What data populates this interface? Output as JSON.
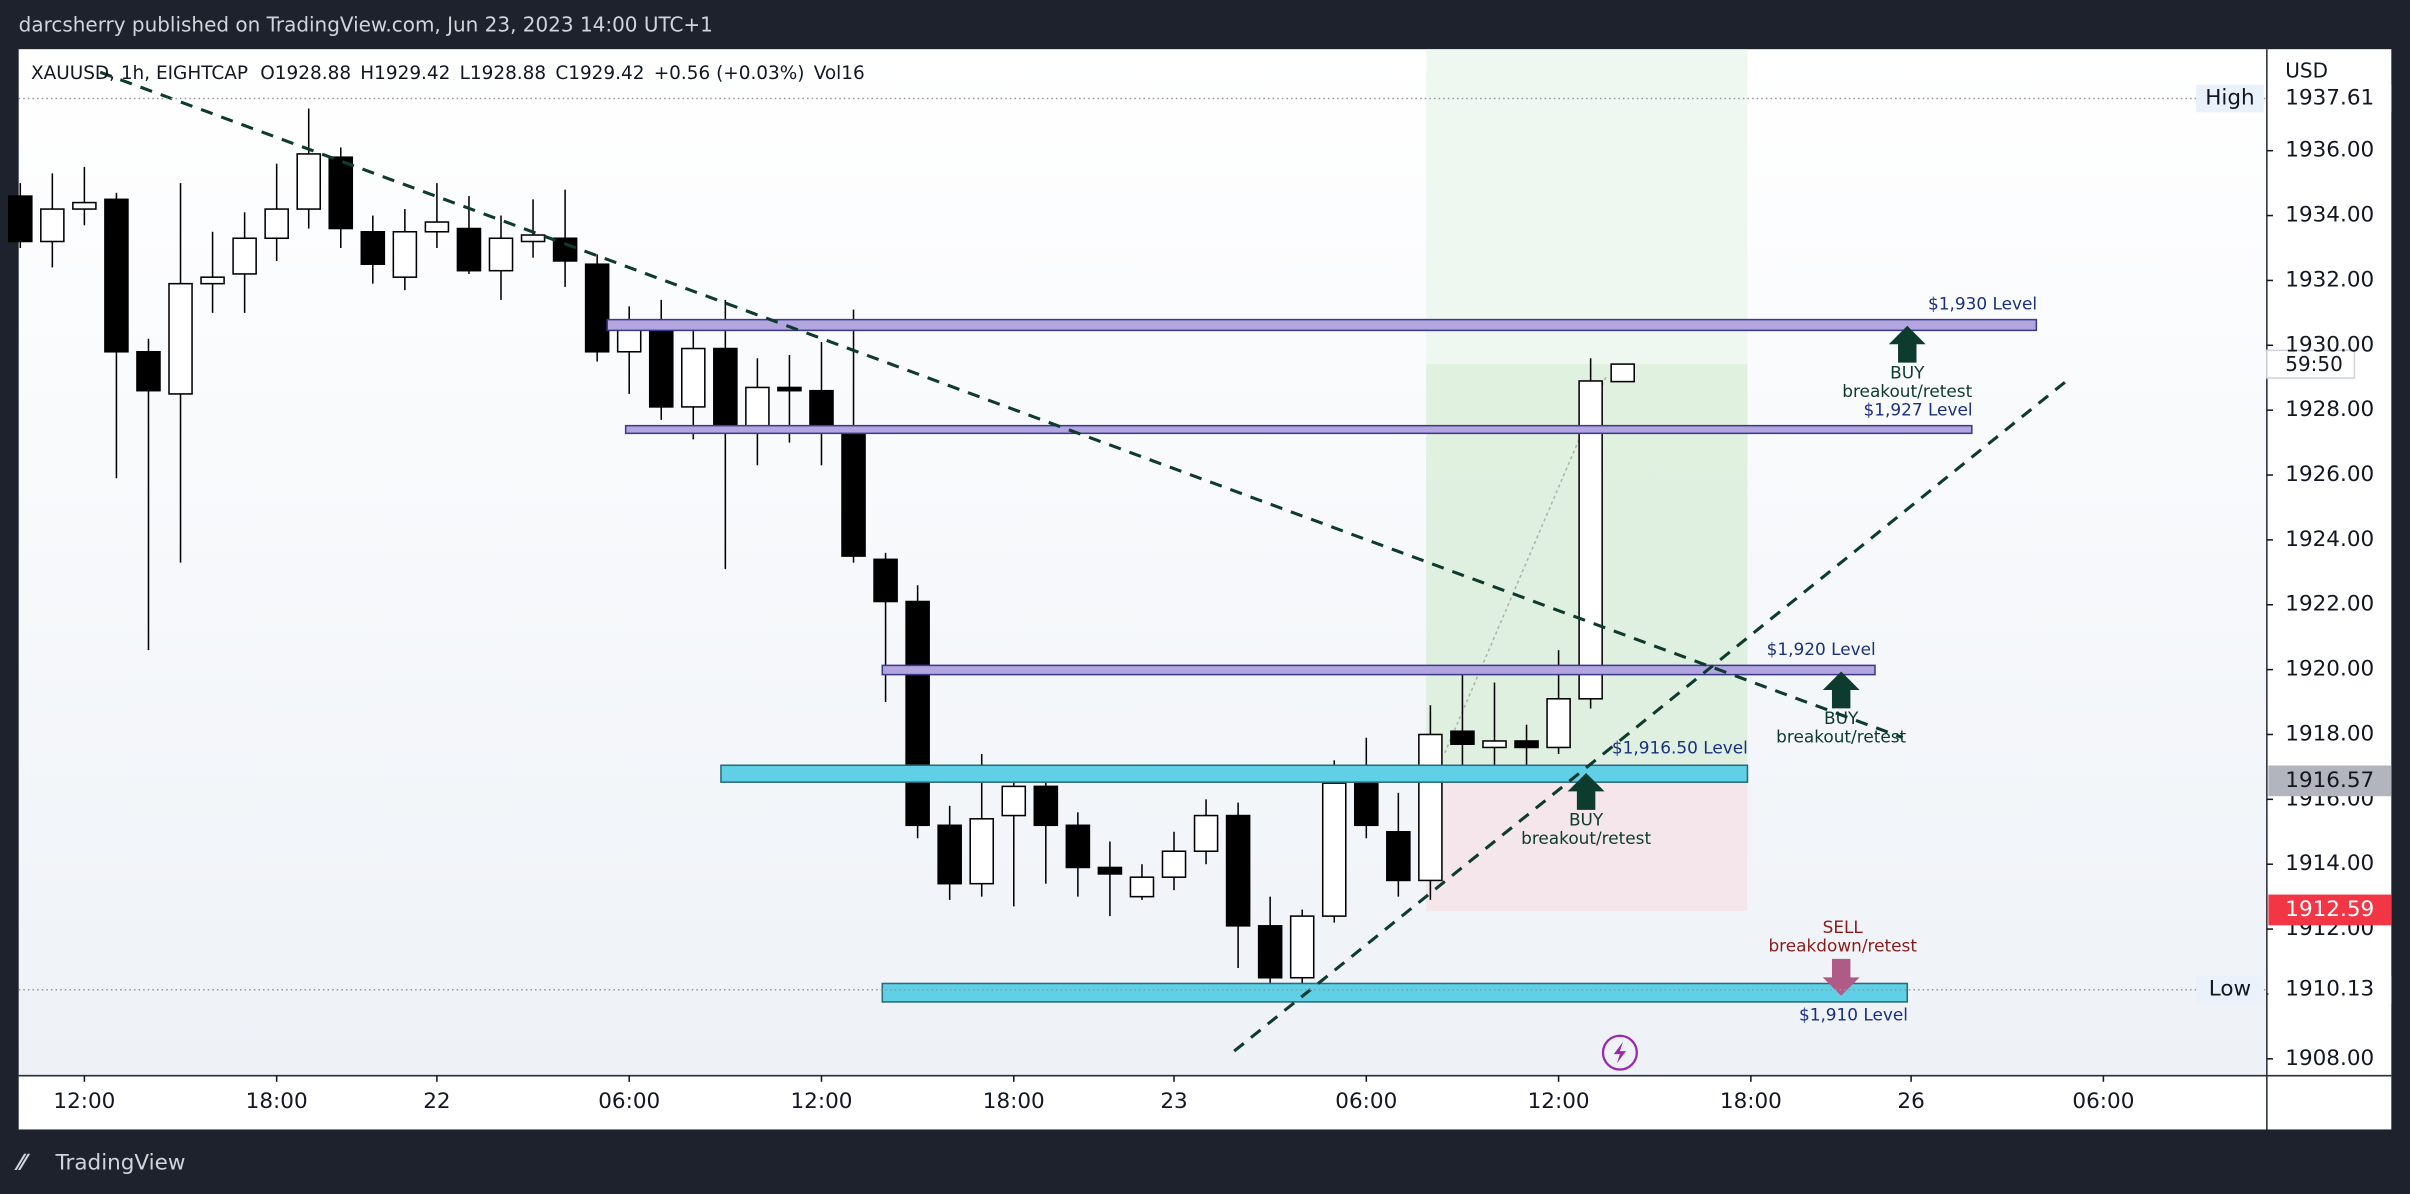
{
  "header": "darcsherry published on TradingView.com, Jun 23, 2023 14:00 UTC+1",
  "footer": "TradingView",
  "chart_data": {
    "type": "candlestick",
    "symbol": "XAUUSD, 1h, EIGHTCAP",
    "ohlc_legend": [
      "O1928.88",
      "H1929.42",
      "L1928.88",
      "C1929.42",
      "+0.56 (+0.03%)",
      "Vol16"
    ],
    "currency": "USD",
    "x": [
      0,
      1,
      2,
      3,
      4,
      5,
      6,
      7,
      8,
      9,
      10,
      11,
      12,
      13,
      14,
      15,
      16,
      17,
      18,
      19,
      20,
      21,
      22,
      23,
      24,
      25,
      26,
      27,
      28,
      29,
      30,
      31,
      32,
      33,
      34,
      35,
      36,
      37,
      38,
      39,
      40,
      41,
      42,
      43,
      44,
      45,
      46,
      47,
      48,
      49,
      50
    ],
    "open": [
      1934.6,
      1933.2,
      1934.2,
      1934.5,
      1929.8,
      1928.5,
      1931.9,
      1932.2,
      1933.3,
      1934.2,
      1935.8,
      1933.5,
      1932.1,
      1933.5,
      1933.6,
      1932.3,
      1933.2,
      1933.3,
      1932.5,
      1929.8,
      1930.5,
      1928.1,
      1929.9,
      1927.4,
      1928.7,
      1928.6,
      1927.3,
      1923.4,
      1922.1,
      1915.2,
      1913.4,
      1915.5,
      1916.4,
      1915.2,
      1913.9,
      1913.0,
      1913.6,
      1914.4,
      1915.5,
      1912.1,
      1910.5,
      1912.4,
      1916.5,
      1915.0,
      1913.5,
      1918.1,
      1917.6,
      1917.8,
      1917.6,
      1919.1,
      1928.88
    ],
    "high": [
      1935.0,
      1935.3,
      1935.5,
      1934.7,
      1930.2,
      1935.0,
      1933.5,
      1934.1,
      1935.6,
      1937.3,
      1936.1,
      1934.0,
      1934.2,
      1935.0,
      1934.6,
      1934.0,
      1934.5,
      1934.8,
      1932.8,
      1931.2,
      1931.4,
      1930.6,
      1931.4,
      1929.6,
      1929.7,
      1930.1,
      1931.1,
      1923.6,
      1922.6,
      1915.8,
      1917.4,
      1917.0,
      1916.9,
      1915.6,
      1914.7,
      1914.0,
      1915.0,
      1916.0,
      1915.9,
      1913.0,
      1912.6,
      1917.2,
      1917.9,
      1916.2,
      1918.9,
      1920.0,
      1919.6,
      1918.3,
      1920.6,
      1929.6,
      1929.42
    ],
    "low": [
      1933.0,
      1932.4,
      1933.7,
      1925.9,
      1920.6,
      1923.3,
      1931.0,
      1931.0,
      1932.6,
      1933.6,
      1933.0,
      1931.9,
      1931.7,
      1933.0,
      1932.2,
      1931.4,
      1932.7,
      1931.8,
      1929.5,
      1928.5,
      1927.7,
      1927.1,
      1923.1,
      1926.3,
      1927.0,
      1926.3,
      1923.3,
      1919.0,
      1914.8,
      1912.9,
      1913.0,
      1912.7,
      1913.4,
      1913.0,
      1912.4,
      1912.9,
      1913.2,
      1914.0,
      1910.8,
      1910.1,
      1910.1,
      1912.2,
      1914.8,
      1913.0,
      1912.9,
      1917.0,
      1917.0,
      1916.6,
      1917.4,
      1918.8,
      1928.88
    ],
    "close": [
      1933.2,
      1934.2,
      1934.4,
      1929.8,
      1928.6,
      1931.9,
      1932.1,
      1933.3,
      1934.2,
      1935.9,
      1933.6,
      1932.5,
      1933.5,
      1933.8,
      1932.3,
      1933.3,
      1933.4,
      1932.6,
      1929.8,
      1930.5,
      1928.1,
      1929.9,
      1927.4,
      1928.7,
      1928.6,
      1927.3,
      1923.5,
      1922.1,
      1915.2,
      1913.4,
      1915.4,
      1916.4,
      1915.2,
      1913.9,
      1913.7,
      1913.6,
      1914.4,
      1915.5,
      1912.1,
      1910.5,
      1912.4,
      1916.5,
      1915.2,
      1913.5,
      1918.0,
      1917.7,
      1917.8,
      1917.6,
      1919.1,
      1928.9,
      1929.42
    ],
    "xlim": [
      -0.05,
      70.1
    ],
    "xticks": [
      {
        "value": 2,
        "label": "12:00"
      },
      {
        "value": 8,
        "label": "18:00"
      },
      {
        "value": 13,
        "label": "22"
      },
      {
        "value": 19,
        "label": "06:00"
      },
      {
        "value": 25,
        "label": "12:00"
      },
      {
        "value": 31,
        "label": "18:00"
      },
      {
        "value": 36,
        "label": "23"
      },
      {
        "value": 42,
        "label": "06:00"
      },
      {
        "value": 48,
        "label": "12:00"
      },
      {
        "value": 54,
        "label": "18:00"
      },
      {
        "value": 59,
        "label": "26"
      },
      {
        "value": 65,
        "label": "06:00"
      }
    ],
    "ylim": [
      1907.48,
      1939.13
    ],
    "yticks": [
      {
        "value": 1908,
        "label": "1908.00"
      },
      {
        "value": 1910,
        "label": "1910.00"
      },
      {
        "value": 1912,
        "label": "1912.00"
      },
      {
        "value": 1914,
        "label": "1914.00"
      },
      {
        "value": 1916,
        "label": "1916.00"
      },
      {
        "value": 1918,
        "label": "1918.00"
      },
      {
        "value": 1920,
        "label": "1920.00"
      },
      {
        "value": 1922,
        "label": "1922.00"
      },
      {
        "value": 1924,
        "label": "1924.00"
      },
      {
        "value": 1926,
        "label": "1926.00"
      },
      {
        "value": 1928,
        "label": "1928.00"
      },
      {
        "value": 1930,
        "label": "1930.00"
      },
      {
        "value": 1932,
        "label": "1932.00"
      },
      {
        "value": 1934,
        "label": "1934.00"
      },
      {
        "value": 1936,
        "label": "1936.00"
      }
    ],
    "grid": false,
    "up_color": "#ffffff",
    "down_color": "#000000",
    "price_labels": [
      {
        "name": "High",
        "value": 1937.61
      },
      {
        "name": "Low",
        "value": 1910.13
      },
      {
        "value": 1916.57,
        "color": "#b2b5be"
      },
      {
        "value": 1912.59,
        "color": "#f23645"
      }
    ],
    "countdown": "59:50",
    "annotations": [
      "$1,930 Level",
      "BUY",
      "breakout/retest",
      "$1,927 Level",
      "$1,920 Level",
      "BUY",
      "breakout/retest",
      "$1,916.50 Level",
      "BUY",
      "breakout/retest",
      "SELL",
      "breakdown/retest",
      "$1,910 Level"
    ]
  }
}
